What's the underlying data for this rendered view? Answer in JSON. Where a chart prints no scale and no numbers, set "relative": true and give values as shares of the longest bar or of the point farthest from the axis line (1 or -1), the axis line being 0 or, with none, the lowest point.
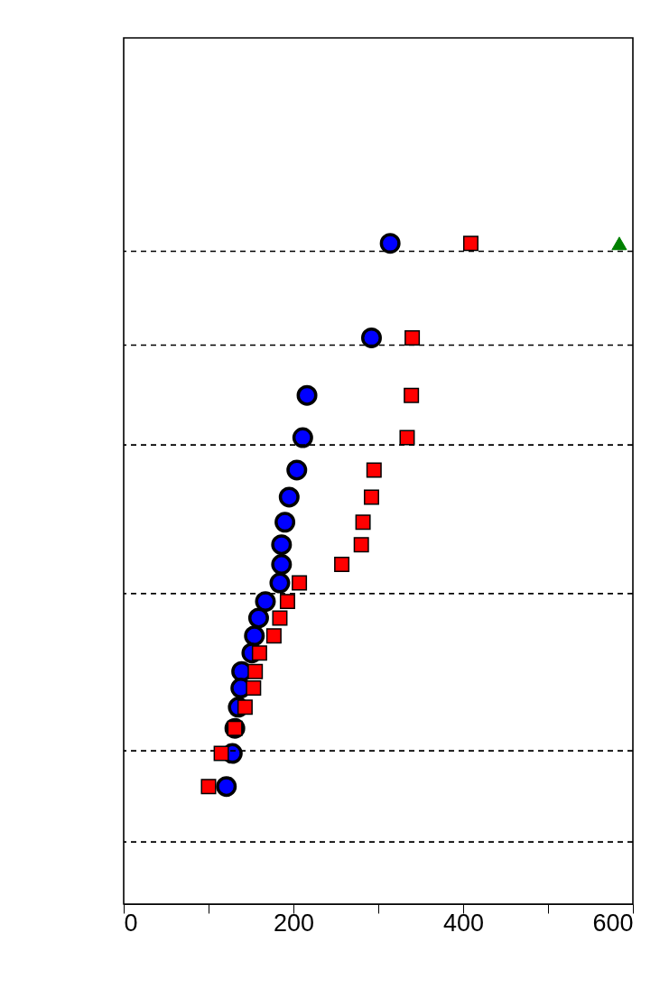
{
  "chart_data": {
    "type": "scatter",
    "relative": true,
    "grid": false,
    "xlim": [
      0,
      600
    ],
    "xticks": [
      0,
      {
        "value": 100,
        "label": null
      },
      200,
      {
        "value": 300,
        "label": null
      },
      400,
      {
        "value": 500,
        "label": null
      },
      600
    ],
    "series": [
      {
        "color": "#0000ff",
        "marker": "circle",
        "x": [
          314,
          292,
          216,
          211,
          204,
          195,
          190,
          186,
          186,
          184,
          167,
          159,
          154,
          151,
          139,
          138,
          135,
          131,
          128,
          121
        ],
        "values": [
          1.0,
          0.857,
          0.77,
          0.706,
          0.657,
          0.616,
          0.578,
          0.544,
          0.514,
          0.486,
          0.458,
          0.433,
          0.406,
          0.38,
          0.352,
          0.327,
          0.298,
          0.266,
          0.228,
          0.178
        ]
      },
      {
        "color": "#ff0000",
        "marker": "square",
        "x": [
          409,
          340,
          339,
          334,
          295,
          292,
          282,
          280,
          257,
          207,
          193,
          184,
          177,
          160,
          155,
          153,
          143,
          131,
          115,
          100
        ],
        "values": [
          1.0,
          0.857,
          0.77,
          0.706,
          0.657,
          0.616,
          0.578,
          0.544,
          0.514,
          0.486,
          0.458,
          0.433,
          0.406,
          0.38,
          0.352,
          0.327,
          0.298,
          0.266,
          0.228,
          0.178
        ]
      },
      {
        "color": "#008000",
        "marker": "triangle",
        "x": [
          584
        ],
        "values": [
          1.0
        ]
      }
    ],
    "ref_lines": [
      {
        "axis": "y",
        "value": 0.988,
        "color": "#000000",
        "line_style": "dashed"
      },
      {
        "axis": "y",
        "value": 0.846,
        "color": "#000000",
        "line_style": "dashed"
      },
      {
        "axis": "y",
        "value": 0.695,
        "color": "#000000",
        "line_style": "dashed"
      },
      {
        "axis": "y",
        "value": 0.47,
        "color": "#000000",
        "line_style": "dashed"
      },
      {
        "axis": "y",
        "value": 0.232,
        "color": "#000000",
        "line_style": "dashed"
      },
      {
        "axis": "y",
        "value": 0.094,
        "color": "#000000",
        "line_style": "dashed"
      }
    ]
  }
}
